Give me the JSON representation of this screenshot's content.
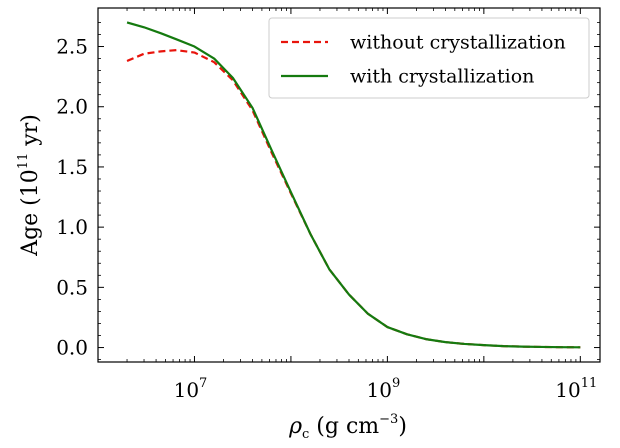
{
  "chart_data": {
    "type": "line",
    "title": "",
    "xscale": "log",
    "xlim": [
      1000000,
      160000000000
    ],
    "ylim": [
      -0.12,
      2.82
    ],
    "xticks": [
      {
        "exp": "7",
        "value": 10000000
      },
      {
        "exp": "9",
        "value": 1000000000
      },
      {
        "exp": "11",
        "value": 100000000000
      }
    ],
    "yticks": [
      {
        "label": "0.0",
        "value": 0.0
      },
      {
        "label": "0.5",
        "value": 0.5
      },
      {
        "label": "1.0",
        "value": 1.0
      },
      {
        "label": "1.5",
        "value": 1.5
      },
      {
        "label": "2.0",
        "value": 2.0
      },
      {
        "label": "2.5",
        "value": 2.5
      }
    ],
    "xlabel": {
      "symbol": "ρ",
      "sub": "c",
      "units_open": " (g cm",
      "units_sup": "−3",
      "units_close": ")"
    },
    "ylabel": {
      "main": "Age (10",
      "sup": "11",
      "tail": " yr)"
    },
    "legend": {
      "placement": "top-right"
    },
    "series": [
      {
        "name": "without crystallization",
        "color": "#e8140c",
        "style": "dashed",
        "x": [
          2000000,
          3000000,
          4500000,
          6500000,
          10000000,
          16000000,
          25000000,
          40000000,
          63000000,
          100000000,
          160000000,
          250000000,
          400000000,
          630000000,
          1000000000,
          1600000000,
          2500000000,
          4000000000,
          6300000000,
          10000000000,
          16000000000,
          25000000000,
          40000000000,
          63000000000,
          100000000000
        ],
        "y": [
          2.38,
          2.44,
          2.46,
          2.47,
          2.45,
          2.37,
          2.22,
          1.97,
          1.62,
          1.28,
          0.94,
          0.65,
          0.44,
          0.28,
          0.17,
          0.11,
          0.07,
          0.045,
          0.03,
          0.02,
          0.012,
          0.008,
          0.005,
          0.003,
          0.002
        ]
      },
      {
        "name": "with crystallization",
        "color": "#157a0f",
        "style": "solid",
        "x": [
          2000000,
          3000000,
          4500000,
          6500000,
          10000000,
          16000000,
          25000000,
          40000000,
          63000000,
          100000000,
          160000000,
          250000000,
          400000000,
          630000000,
          1000000000,
          1600000000,
          2500000000,
          4000000000,
          6300000000,
          10000000000,
          16000000000,
          25000000000,
          40000000000,
          63000000000,
          100000000000
        ],
        "y": [
          2.7,
          2.66,
          2.61,
          2.56,
          2.5,
          2.4,
          2.24,
          1.99,
          1.64,
          1.29,
          0.94,
          0.65,
          0.44,
          0.28,
          0.17,
          0.11,
          0.07,
          0.045,
          0.03,
          0.02,
          0.012,
          0.008,
          0.005,
          0.003,
          0.002
        ]
      }
    ]
  }
}
